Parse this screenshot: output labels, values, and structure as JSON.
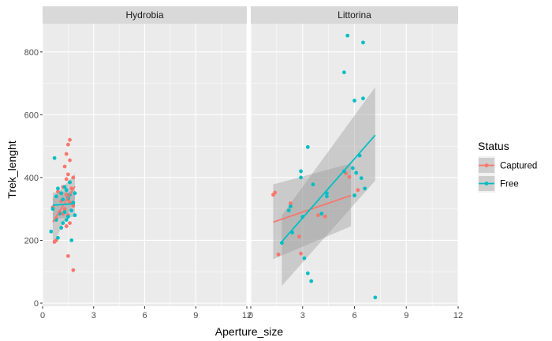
{
  "chart_data": {
    "type": "scatter",
    "facets": [
      "Hydrobia",
      "Littorina"
    ],
    "xlabel": "Aperture_size",
    "ylabel": "Trek_lenght",
    "xlim": [
      0,
      12
    ],
    "ylim": [
      -10,
      890
    ],
    "x_ticks": [
      0,
      3,
      6,
      9,
      12
    ],
    "y_ticks": [
      0,
      200,
      400,
      600,
      800
    ],
    "x_tick_labels": [
      "0",
      "3",
      "6",
      "9",
      "12"
    ],
    "y_tick_labels": [
      "0",
      "200",
      "400",
      "600",
      "800"
    ],
    "grid": true,
    "legend": {
      "title": "Status",
      "position": "right",
      "entries": [
        {
          "label": "Captured",
          "color": "#F8766D"
        },
        {
          "label": "Free",
          "color": "#00BFC4"
        }
      ]
    },
    "series": [
      {
        "name": "Captured",
        "color": "#F8766D",
        "points": {
          "Hydrobia": [
            [
              1.6,
              520
            ],
            [
              1.5,
              505
            ],
            [
              1.4,
              475
            ],
            [
              1.6,
              455
            ],
            [
              1.3,
              435
            ],
            [
              1.5,
              410
            ],
            [
              1.8,
              400
            ],
            [
              1.4,
              395
            ],
            [
              1.6,
              385
            ],
            [
              1.2,
              370
            ],
            [
              1.7,
              365
            ],
            [
              0.9,
              355
            ],
            [
              1.4,
              345
            ],
            [
              1.5,
              330
            ],
            [
              1.1,
              325
            ],
            [
              1.6,
              320
            ],
            [
              1.8,
              310
            ],
            [
              0.6,
              305
            ],
            [
              1.3,
              300
            ],
            [
              1.0,
              290
            ],
            [
              1.2,
              285
            ],
            [
              1.5,
              280
            ],
            [
              0.8,
              270
            ],
            [
              1.6,
              255
            ],
            [
              1.4,
              245
            ],
            [
              0.8,
              200
            ],
            [
              0.7,
              195
            ],
            [
              1.5,
              150
            ],
            [
              1.8,
              105
            ]
          ],
          "Littorina": [
            [
              1.3,
              345
            ],
            [
              1.4,
              352
            ],
            [
              1.6,
              155
            ],
            [
              2.3,
              318
            ],
            [
              2.8,
              212
            ],
            [
              2.9,
              158
            ],
            [
              3.9,
              280
            ],
            [
              4.3,
              276
            ],
            [
              5.5,
              413
            ],
            [
              6.2,
              360
            ],
            [
              5.7,
              402
            ]
          ]
        },
        "trend": {
          "Hydrobia": {
            "x": [
              0.6,
              1.9
            ],
            "y": [
              258,
              372
            ],
            "band_lo": [
              185,
              330
            ],
            "band_hi": [
              335,
              412
            ]
          },
          "Littorina": {
            "x": [
              1.3,
              5.8
            ],
            "y": [
              258,
              343
            ],
            "band_lo": [
              140,
              245
            ],
            "band_hi": [
              378,
              445
            ]
          }
        }
      },
      {
        "name": "Free",
        "color": "#00BFC4",
        "points": {
          "Hydrobia": [
            [
              0.7,
              462
            ],
            [
              1.6,
              385
            ],
            [
              1.3,
              370
            ],
            [
              0.9,
              365
            ],
            [
              1.4,
              360
            ],
            [
              1.1,
              350
            ],
            [
              1.9,
              350
            ],
            [
              1.6,
              345
            ],
            [
              0.8,
              340
            ],
            [
              1.5,
              335
            ],
            [
              1.2,
              330
            ],
            [
              1.8,
              320
            ],
            [
              0.6,
              300
            ],
            [
              1.7,
              295
            ],
            [
              1.3,
              290
            ],
            [
              1.0,
              285
            ],
            [
              1.9,
              280
            ],
            [
              1.5,
              275
            ],
            [
              0.8,
              265
            ],
            [
              1.4,
              265
            ],
            [
              1.2,
              255
            ],
            [
              1.1,
              240
            ],
            [
              0.5,
              228
            ],
            [
              1.7,
              200
            ],
            [
              0.9,
              208
            ]
          ],
          "Littorina": [
            [
              5.6,
              852
            ],
            [
              6.5,
              830
            ],
            [
              5.4,
              735
            ],
            [
              6.5,
              652
            ],
            [
              6.0,
              645
            ],
            [
              3.3,
              497
            ],
            [
              2.9,
              420
            ],
            [
              6.3,
              470
            ],
            [
              2.9,
              400
            ],
            [
              5.9,
              430
            ],
            [
              6.1,
              415
            ],
            [
              5.4,
              420
            ],
            [
              6.4,
              398
            ],
            [
              3.6,
              378
            ],
            [
              4.4,
              350
            ],
            [
              4.4,
              340
            ],
            [
              6.6,
              365
            ],
            [
              6.0,
              343
            ],
            [
              4.1,
              285
            ],
            [
              2.3,
              308
            ],
            [
              2.2,
              295
            ],
            [
              3.0,
              275
            ],
            [
              2.4,
              225
            ],
            [
              1.8,
              192
            ],
            [
              3.1,
              143
            ],
            [
              3.3,
              95
            ],
            [
              3.5,
              70
            ],
            [
              7.2,
              18
            ]
          ]
        },
        "trend": {
          "Hydrobia": {
            "x": [
              0.6,
              1.9
            ],
            "y": [
              312,
              317
            ],
            "band_lo": [
              268,
              275
            ],
            "band_hi": [
              352,
              358
            ]
          },
          "Littorina": {
            "x": [
              1.8,
              7.2
            ],
            "y": [
              196,
              535
            ],
            "band_lo": [
              55,
              390
            ],
            "band_hi": [
              280,
              688
            ]
          }
        }
      }
    ]
  }
}
